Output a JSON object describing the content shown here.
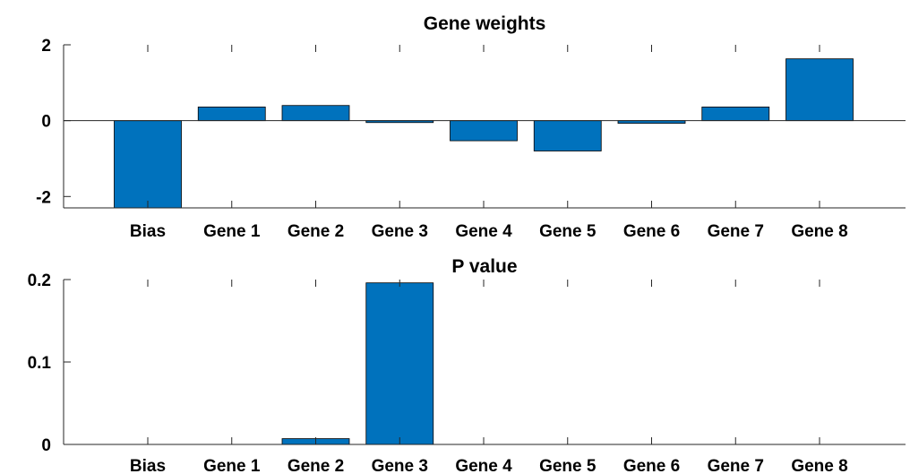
{
  "chart_data": [
    {
      "type": "bar",
      "title": "Gene weights",
      "xlabel": "",
      "ylabel": "",
      "categories": [
        "Bias",
        "Gene 1",
        "Gene 2",
        "Gene 3",
        "Gene 4",
        "Gene 5",
        "Gene 6",
        "Gene 7",
        "Gene 8"
      ],
      "values": [
        -2.4,
        0.36,
        0.4,
        -0.05,
        -0.53,
        -0.8,
        -0.07,
        0.36,
        1.63
      ],
      "ylim": [
        -2.3,
        2.0
      ],
      "yticks": [
        2,
        0,
        -2
      ],
      "ytick_labels": [
        "2",
        "0",
        "-2"
      ],
      "bar_color": "#0072BD",
      "grid": false,
      "zero_line": true
    },
    {
      "type": "bar",
      "title": "P value",
      "xlabel": "",
      "ylabel": "",
      "categories": [
        "Bias",
        "Gene 1",
        "Gene 2",
        "Gene 3",
        "Gene 4",
        "Gene 5",
        "Gene 6",
        "Gene 7",
        "Gene 8"
      ],
      "values": [
        0.0,
        0.0,
        0.007,
        0.196,
        0.0,
        0.0,
        0.0,
        0.0,
        0.0
      ],
      "ylim": [
        0,
        0.2
      ],
      "yticks": [
        0.2,
        0.1,
        0
      ],
      "ytick_labels": [
        "0.2",
        "0.1",
        "0"
      ],
      "bar_color": "#0072BD",
      "grid": false,
      "zero_line": false
    }
  ]
}
